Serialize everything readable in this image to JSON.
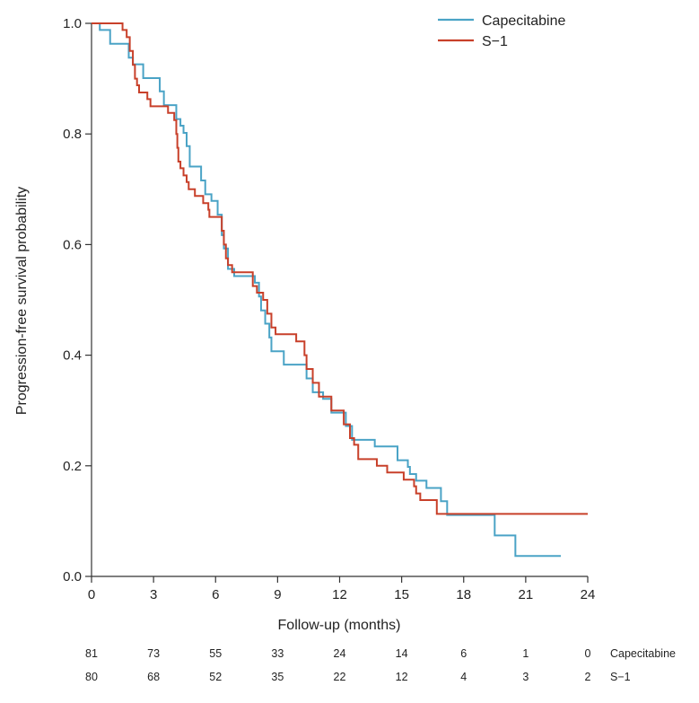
{
  "chart_data": {
    "type": "line",
    "subtype": "kaplan-meier step",
    "title": "",
    "xlabel": "Follow-up (months)",
    "ylabel": "Progression-free survival probability",
    "xlim": [
      0,
      24
    ],
    "ylim": [
      0,
      1
    ],
    "x_ticks": [
      "0",
      "3",
      "6",
      "9",
      "12",
      "15",
      "18",
      "21",
      "24"
    ],
    "y_ticks": [
      "0.0",
      "0.2",
      "0.4",
      "0.6",
      "0.8",
      "1.0"
    ],
    "grid": false,
    "legend_position": "top-right",
    "colors": {
      "capecitabine": "#4aa3c6",
      "s1": "#c8402a"
    },
    "series": [
      {
        "name": "Capecitabine",
        "color": "#4aa3c6",
        "points": [
          [
            0,
            1.0
          ],
          [
            0.4,
            0.988
          ],
          [
            0.9,
            0.963
          ],
          [
            1.8,
            0.938
          ],
          [
            2.0,
            0.926
          ],
          [
            2.5,
            0.901
          ],
          [
            3.3,
            0.877
          ],
          [
            3.5,
            0.852
          ],
          [
            4.1,
            0.827
          ],
          [
            4.3,
            0.815
          ],
          [
            4.45,
            0.802
          ],
          [
            4.6,
            0.778
          ],
          [
            4.75,
            0.741
          ],
          [
            5.3,
            0.716
          ],
          [
            5.5,
            0.691
          ],
          [
            5.8,
            0.679
          ],
          [
            6.1,
            0.654
          ],
          [
            6.3,
            0.617
          ],
          [
            6.4,
            0.593
          ],
          [
            6.6,
            0.556
          ],
          [
            6.9,
            0.543
          ],
          [
            7.9,
            0.531
          ],
          [
            8.1,
            0.506
          ],
          [
            8.2,
            0.481
          ],
          [
            8.4,
            0.457
          ],
          [
            8.6,
            0.432
          ],
          [
            8.7,
            0.407
          ],
          [
            9.3,
            0.383
          ],
          [
            10.4,
            0.358
          ],
          [
            10.7,
            0.333
          ],
          [
            11.2,
            0.321
          ],
          [
            11.6,
            0.296
          ],
          [
            12.3,
            0.272
          ],
          [
            12.6,
            0.247
          ],
          [
            13.7,
            0.235
          ],
          [
            14.8,
            0.21
          ],
          [
            15.3,
            0.198
          ],
          [
            15.4,
            0.185
          ],
          [
            15.7,
            0.173
          ],
          [
            16.2,
            0.16
          ],
          [
            16.9,
            0.136
          ],
          [
            17.2,
            0.111
          ],
          [
            19.5,
            0.074
          ],
          [
            20.5,
            0.037
          ],
          [
            22.7,
            0.037
          ]
        ]
      },
      {
        "name": "S-1",
        "color": "#c8402a",
        "points": [
          [
            0,
            1.0
          ],
          [
            1.5,
            0.988
          ],
          [
            1.7,
            0.975
          ],
          [
            1.85,
            0.95
          ],
          [
            2.0,
            0.925
          ],
          [
            2.1,
            0.9
          ],
          [
            2.2,
            0.888
          ],
          [
            2.3,
            0.875
          ],
          [
            2.7,
            0.863
          ],
          [
            2.85,
            0.85
          ],
          [
            3.6,
            0.85
          ],
          [
            3.7,
            0.838
          ],
          [
            4.0,
            0.825
          ],
          [
            4.1,
            0.8
          ],
          [
            4.15,
            0.775
          ],
          [
            4.2,
            0.75
          ],
          [
            4.3,
            0.738
          ],
          [
            4.45,
            0.725
          ],
          [
            4.6,
            0.713
          ],
          [
            4.7,
            0.7
          ],
          [
            5.0,
            0.688
          ],
          [
            5.4,
            0.675
          ],
          [
            5.65,
            0.663
          ],
          [
            5.7,
            0.65
          ],
          [
            6.3,
            0.625
          ],
          [
            6.4,
            0.6
          ],
          [
            6.5,
            0.575
          ],
          [
            6.6,
            0.563
          ],
          [
            6.8,
            0.55
          ],
          [
            7.8,
            0.525
          ],
          [
            8.0,
            0.513
          ],
          [
            8.3,
            0.5
          ],
          [
            8.5,
            0.475
          ],
          [
            8.7,
            0.45
          ],
          [
            8.9,
            0.438
          ],
          [
            9.9,
            0.425
          ],
          [
            10.3,
            0.4
          ],
          [
            10.4,
            0.375
          ],
          [
            10.7,
            0.35
          ],
          [
            11.0,
            0.325
          ],
          [
            11.6,
            0.3
          ],
          [
            12.2,
            0.275
          ],
          [
            12.5,
            0.25
          ],
          [
            12.7,
            0.238
          ],
          [
            12.9,
            0.212
          ],
          [
            13.8,
            0.2
          ],
          [
            14.3,
            0.188
          ],
          [
            15.1,
            0.175
          ],
          [
            15.6,
            0.163
          ],
          [
            15.7,
            0.15
          ],
          [
            15.9,
            0.138
          ],
          [
            16.7,
            0.113
          ],
          [
            24.0,
            0.113
          ]
        ]
      }
    ],
    "risk_table": {
      "times": [
        0,
        3,
        6,
        9,
        12,
        15,
        18,
        21,
        24
      ],
      "rows": [
        {
          "label": "Capecitabine",
          "counts": [
            "81",
            "73",
            "55",
            "33",
            "24",
            "14",
            "6",
            "1",
            "0"
          ]
        },
        {
          "label": "S−1",
          "counts": [
            "80",
            "68",
            "52",
            "35",
            "22",
            "12",
            "4",
            "3",
            "2"
          ]
        }
      ]
    },
    "legend": [
      {
        "label": "Capecitabine",
        "color": "#4aa3c6"
      },
      {
        "label": "S−1",
        "color": "#c8402a"
      }
    ]
  }
}
